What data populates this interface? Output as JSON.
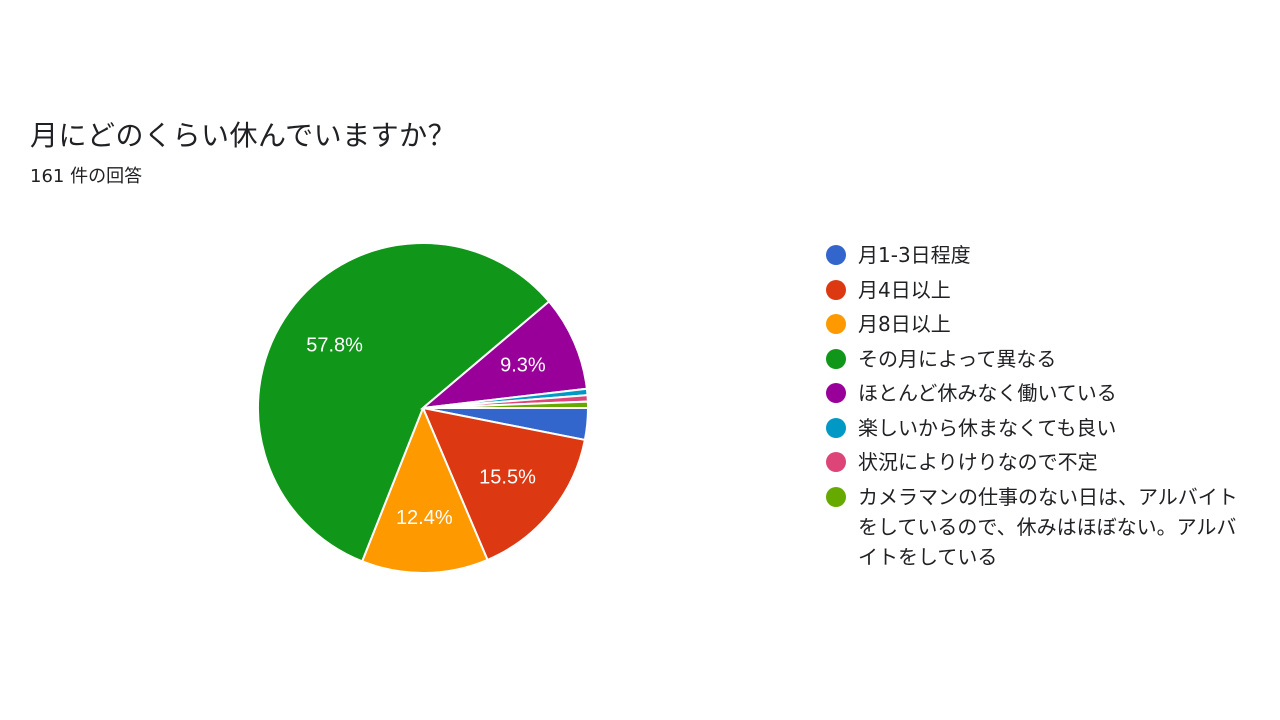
{
  "form": {
    "question_title": "月にどのくらい休んでいますか？",
    "response_count": "161 件の回答"
  },
  "chart_data": {
    "type": "pie",
    "title": "月にどのくらい休んでいますか？",
    "subtitle": "161 件の回答",
    "slices": [
      {
        "label": "月1-3日程度",
        "percent": 3.1,
        "color": "#3366CC",
        "show_label": false
      },
      {
        "label": "月4日以上",
        "percent": 15.5,
        "color": "#DC3912",
        "show_label": true,
        "display": "15.5%"
      },
      {
        "label": "月8日以上",
        "percent": 12.4,
        "color": "#FF9900",
        "show_label": true,
        "display": "12.4%"
      },
      {
        "label": "その月によって異なる",
        "percent": 57.8,
        "color": "#109618",
        "show_label": true,
        "display": "57.8%"
      },
      {
        "label": "ほとんど休みなく働いている",
        "percent": 9.3,
        "color": "#990099",
        "show_label": true,
        "display": "9.3%"
      },
      {
        "label": "楽しいから休まなくても良い",
        "percent": 0.62,
        "color": "#0099C6",
        "show_label": false
      },
      {
        "label": "状況によりけりなので不定",
        "percent": 0.62,
        "color": "#DD4477",
        "show_label": false
      },
      {
        "label": "カメラマンの仕事のない日は、アルバイトをしているので、休みはほぼない。アルバイトをしている",
        "percent": 0.62,
        "color": "#66AA00",
        "show_label": false
      }
    ],
    "legend_position": "right"
  }
}
